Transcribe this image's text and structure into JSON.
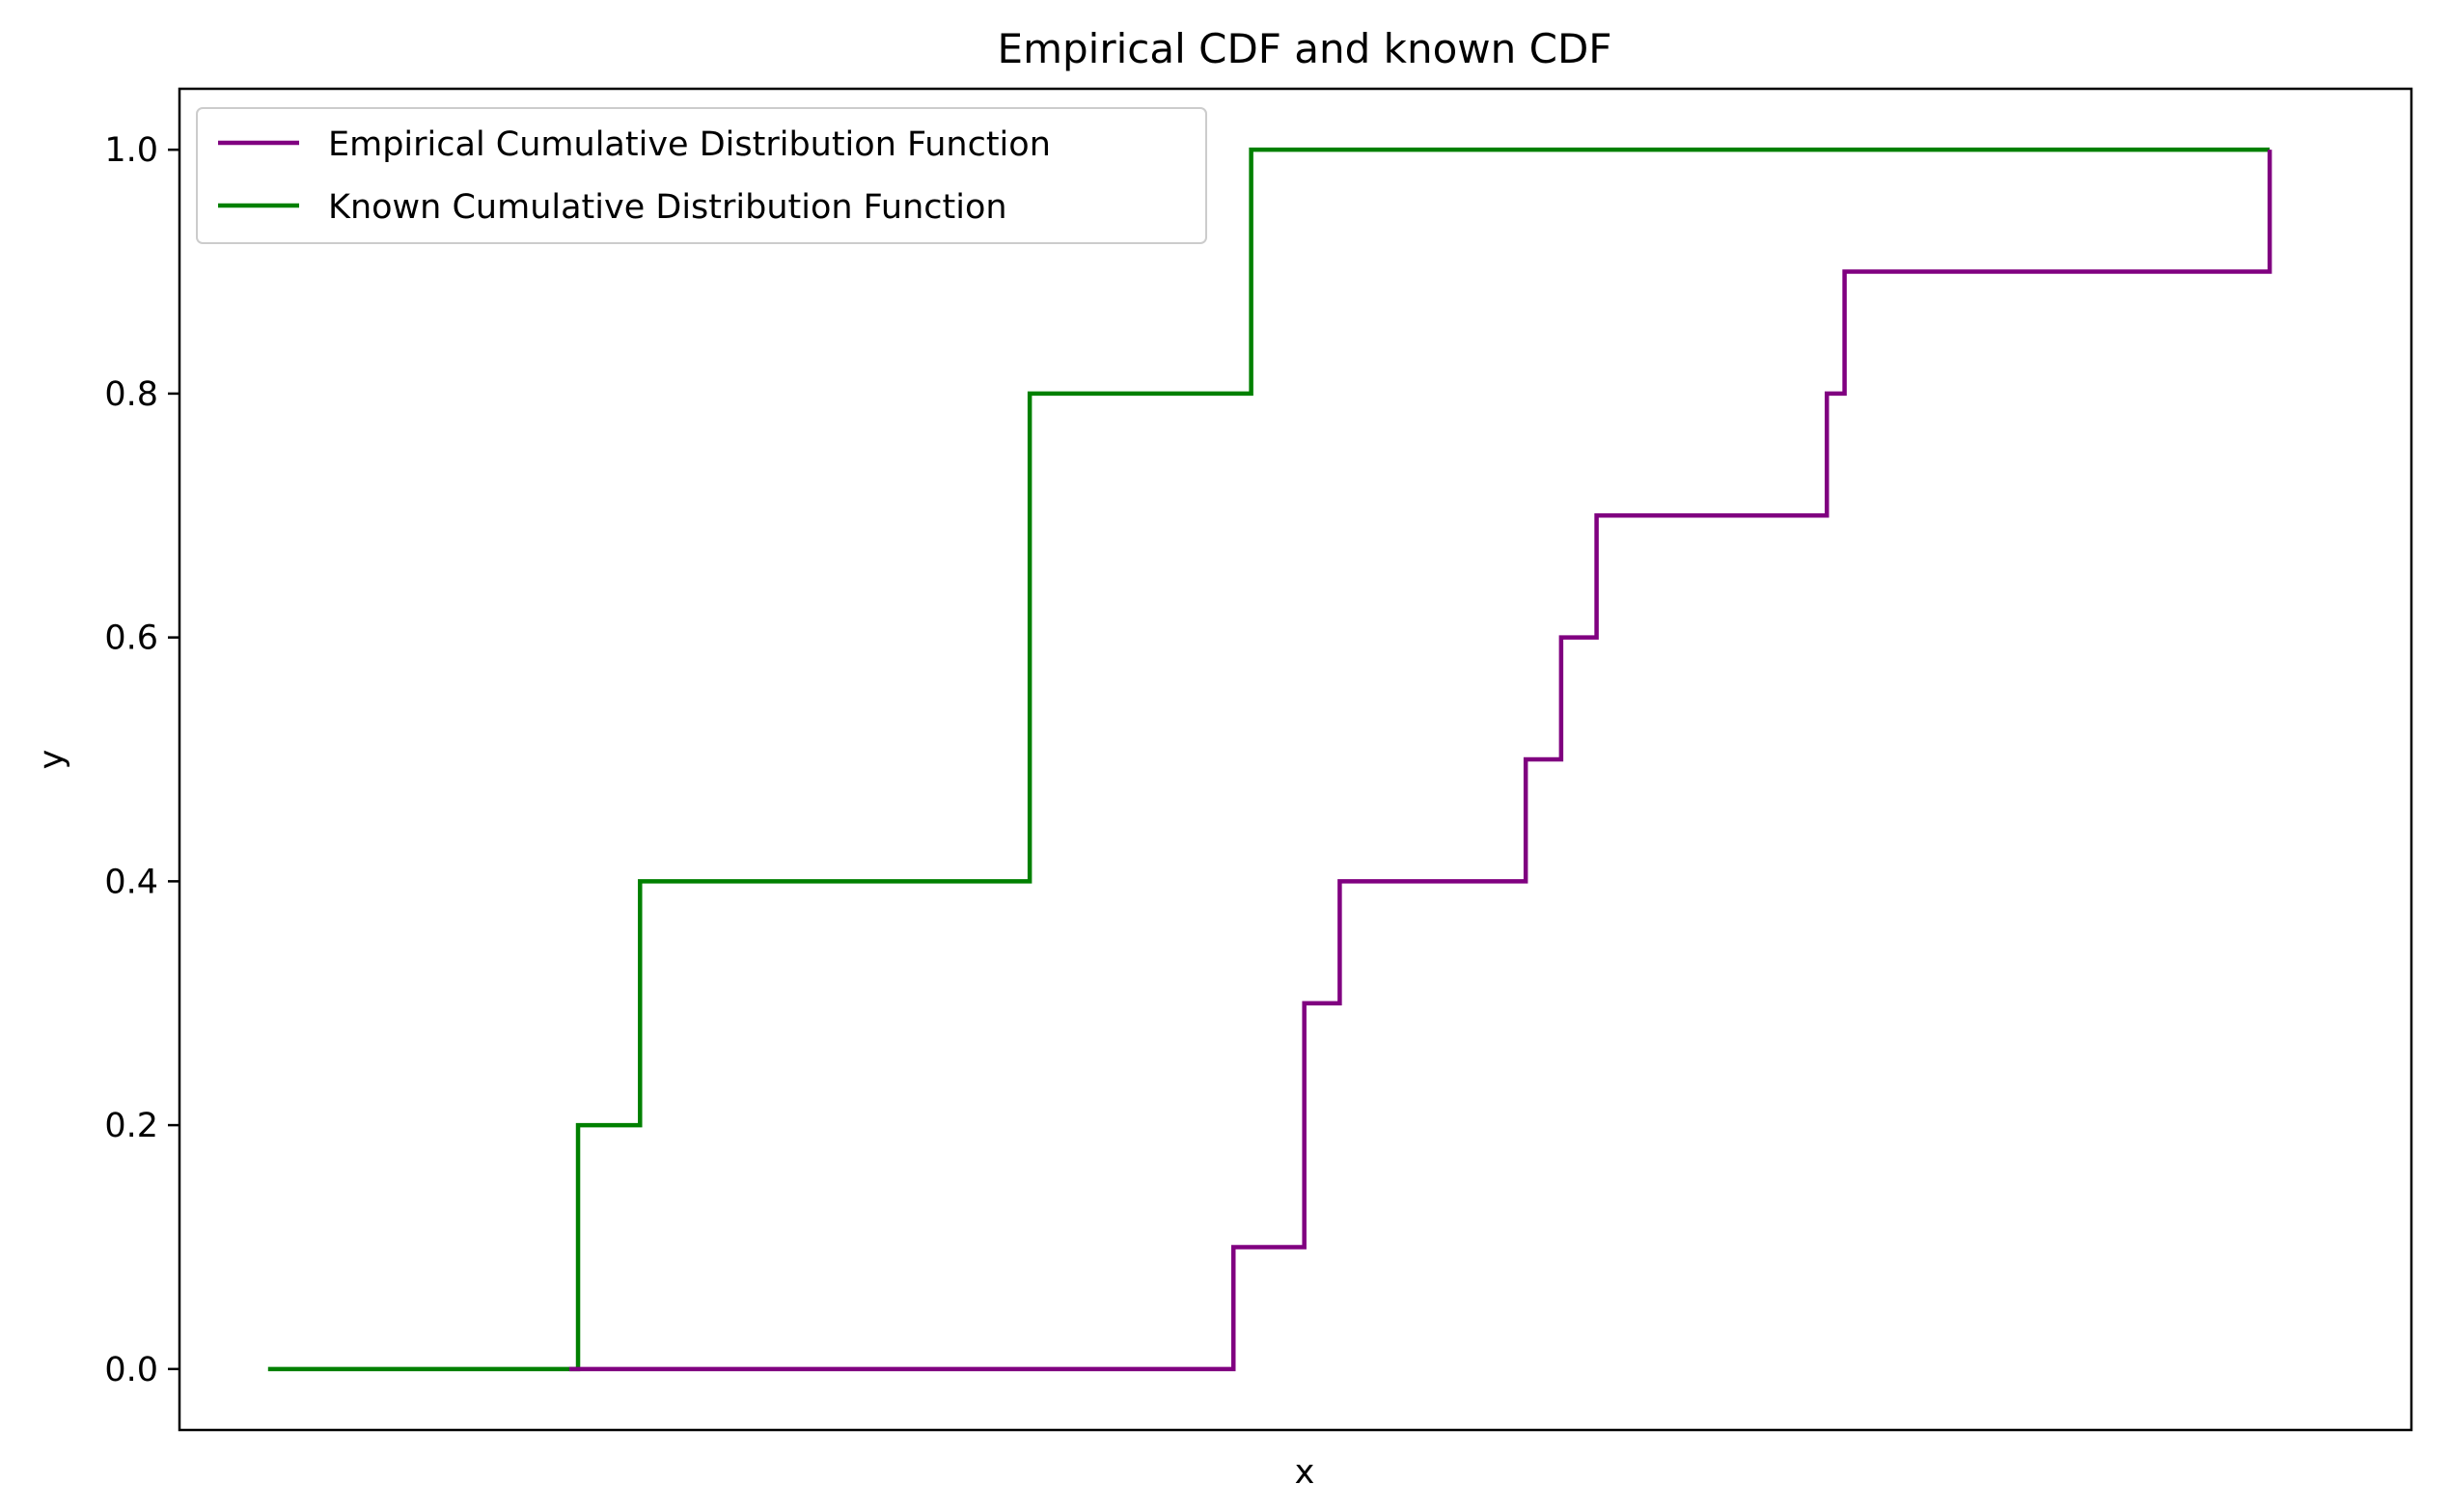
{
  "chart_data": {
    "type": "line",
    "title": "Empirical CDF and known CDF",
    "xlabel": "x",
    "ylabel": "y",
    "xlim": [
      0,
      25.2
    ],
    "ylim": [
      -0.05,
      1.05
    ],
    "y_ticks": [
      0.0,
      0.2,
      0.4,
      0.6,
      0.8,
      1.0
    ],
    "y_tick_labels": [
      "0.0",
      "0.2",
      "0.4",
      "0.6",
      "0.8",
      "1.0"
    ],
    "x_ticks": [],
    "grid": false,
    "legend_position": "top-left",
    "series": [
      {
        "name": "Empirical Cumulative Distribution Function",
        "color": "#800080",
        "step": "post",
        "x": [
          4.4,
          11.1,
          11.9,
          12.7,
          13.1,
          15.0,
          15.2,
          15.6,
          16.0,
          18.6,
          18.8,
          23.6
        ],
        "y": [
          0.0,
          0.0,
          0.1,
          0.3,
          0.4,
          0.4,
          0.5,
          0.6,
          0.7,
          0.8,
          0.9,
          1.0
        ]
      },
      {
        "name": "Known Cumulative Distribution Function",
        "color": "#008000",
        "step": "post",
        "x": [
          1.0,
          4.4,
          4.5,
          5.1,
          5.2,
          9.5,
          9.6,
          12.0,
          12.1,
          23.6
        ],
        "y": [
          0.0,
          0.0,
          0.2,
          0.2,
          0.4,
          0.4,
          0.8,
          0.8,
          1.0,
          1.0
        ]
      }
    ]
  }
}
